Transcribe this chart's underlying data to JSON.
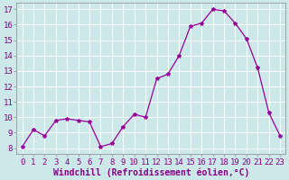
{
  "x": [
    0,
    1,
    2,
    3,
    4,
    5,
    6,
    7,
    8,
    9,
    10,
    11,
    12,
    13,
    14,
    15,
    16,
    17,
    18,
    19,
    20,
    21,
    22,
    23
  ],
  "y": [
    8.1,
    9.2,
    8.8,
    9.8,
    9.9,
    9.8,
    9.7,
    8.1,
    8.3,
    9.4,
    10.2,
    10.0,
    12.5,
    12.8,
    14.0,
    15.9,
    16.1,
    17.0,
    16.9,
    16.1,
    15.1,
    13.2,
    10.3,
    8.8
  ],
  "line_color": "#990099",
  "marker": "*",
  "marker_size": 3,
  "bg_color": "#cce8e8",
  "grid_color": "#b0d4d4",
  "plot_bg": "#cce8e8",
  "xlabel": "Windchill (Refroidissement éolien,°C)",
  "ylabel_ticks": [
    8,
    9,
    10,
    11,
    12,
    13,
    14,
    15,
    16,
    17
  ],
  "ylim": [
    7.6,
    17.4
  ],
  "xlim": [
    -0.5,
    23.5
  ],
  "xtick_labels": [
    "0",
    "1",
    "2",
    "3",
    "4",
    "5",
    "6",
    "7",
    "8",
    "9",
    "10",
    "11",
    "12",
    "13",
    "14",
    "15",
    "16",
    "17",
    "18",
    "19",
    "20",
    "21",
    "22",
    "23"
  ],
  "label_color": "#880088",
  "xlabel_fontsize": 7,
  "tick_fontsize": 6.5,
  "spine_color": "#888888"
}
